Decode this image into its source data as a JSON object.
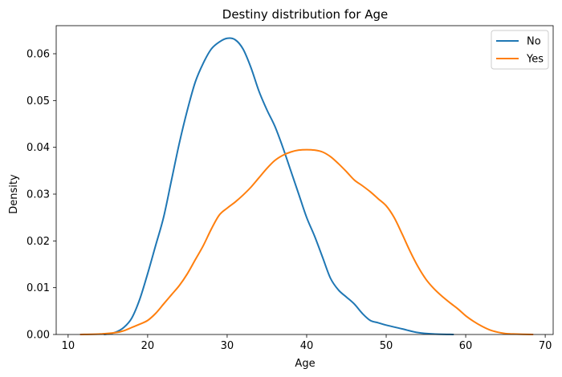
{
  "chart_data": {
    "type": "line",
    "title": "Destiny distribution for Age",
    "xlabel": "Age",
    "ylabel": "Density",
    "xlim": [
      8.5,
      71
    ],
    "ylim": [
      0,
      0.066
    ],
    "x_ticks": [
      10,
      20,
      30,
      40,
      50,
      60,
      70
    ],
    "y_ticks": [
      0.0,
      0.01,
      0.02,
      0.03,
      0.04,
      0.05,
      0.06
    ],
    "x_tick_labels": [
      "10",
      "20",
      "30",
      "40",
      "50",
      "60",
      "70"
    ],
    "y_tick_labels": [
      "0.00",
      "0.01",
      "0.02",
      "0.03",
      "0.04",
      "0.05",
      "0.06"
    ],
    "grid": false,
    "legend_position": "top-right",
    "series": [
      {
        "name": "No",
        "color": "#1f77b4",
        "points": [
          [
            14.5,
            0.0
          ],
          [
            15,
            0.0001
          ],
          [
            16,
            0.0005
          ],
          [
            17,
            0.0015
          ],
          [
            18,
            0.0035
          ],
          [
            19,
            0.0075
          ],
          [
            20,
            0.013
          ],
          [
            21,
            0.019
          ],
          [
            22,
            0.025
          ],
          [
            23,
            0.033
          ],
          [
            24,
            0.041
          ],
          [
            25,
            0.048
          ],
          [
            26,
            0.054
          ],
          [
            27,
            0.058
          ],
          [
            28,
            0.061
          ],
          [
            29,
            0.0625
          ],
          [
            30,
            0.0633
          ],
          [
            31,
            0.063
          ],
          [
            32,
            0.061
          ],
          [
            33,
            0.057
          ],
          [
            34,
            0.052
          ],
          [
            35,
            0.048
          ],
          [
            36,
            0.0445
          ],
          [
            37,
            0.04
          ],
          [
            38,
            0.035
          ],
          [
            39,
            0.03
          ],
          [
            40,
            0.025
          ],
          [
            41,
            0.021
          ],
          [
            42,
            0.0165
          ],
          [
            43,
            0.012
          ],
          [
            44,
            0.0095
          ],
          [
            45,
            0.008
          ],
          [
            46,
            0.0065
          ],
          [
            47,
            0.0045
          ],
          [
            48,
            0.003
          ],
          [
            49,
            0.0025
          ],
          [
            50,
            0.002
          ],
          [
            52,
            0.0012
          ],
          [
            54,
            0.0004
          ],
          [
            56,
            0.0001
          ],
          [
            58.5,
            0.0
          ]
        ]
      },
      {
        "name": "Yes",
        "color": "#ff7f0e",
        "points": [
          [
            11.5,
            0.0
          ],
          [
            14,
            0.0001
          ],
          [
            16,
            0.0004
          ],
          [
            17,
            0.0008
          ],
          [
            18,
            0.0015
          ],
          [
            19,
            0.0022
          ],
          [
            20,
            0.003
          ],
          [
            21,
            0.0045
          ],
          [
            22,
            0.0065
          ],
          [
            23,
            0.0085
          ],
          [
            24,
            0.0105
          ],
          [
            25,
            0.013
          ],
          [
            26,
            0.016
          ],
          [
            27,
            0.019
          ],
          [
            28,
            0.0225
          ],
          [
            29,
            0.0255
          ],
          [
            30,
            0.027
          ],
          [
            31,
            0.0283
          ],
          [
            32,
            0.0298
          ],
          [
            33,
            0.0315
          ],
          [
            34,
            0.0335
          ],
          [
            35,
            0.0355
          ],
          [
            36,
            0.0372
          ],
          [
            37,
            0.0383
          ],
          [
            38,
            0.039
          ],
          [
            39,
            0.0394
          ],
          [
            40,
            0.0395
          ],
          [
            41,
            0.0394
          ],
          [
            42,
            0.039
          ],
          [
            43,
            0.038
          ],
          [
            44,
            0.0365
          ],
          [
            45,
            0.0348
          ],
          [
            46,
            0.033
          ],
          [
            47,
            0.0318
          ],
          [
            48,
            0.0305
          ],
          [
            49,
            0.029
          ],
          [
            50,
            0.0275
          ],
          [
            51,
            0.025
          ],
          [
            52,
            0.0215
          ],
          [
            53,
            0.0178
          ],
          [
            54,
            0.0145
          ],
          [
            55,
            0.0118
          ],
          [
            56,
            0.0098
          ],
          [
            57,
            0.0082
          ],
          [
            58,
            0.0068
          ],
          [
            59,
            0.0055
          ],
          [
            60,
            0.004
          ],
          [
            61,
            0.0028
          ],
          [
            62,
            0.0018
          ],
          [
            63,
            0.001
          ],
          [
            64,
            0.0005
          ],
          [
            65,
            0.0002
          ],
          [
            66,
            0.0001
          ],
          [
            68.5,
            0.0
          ]
        ]
      }
    ]
  }
}
